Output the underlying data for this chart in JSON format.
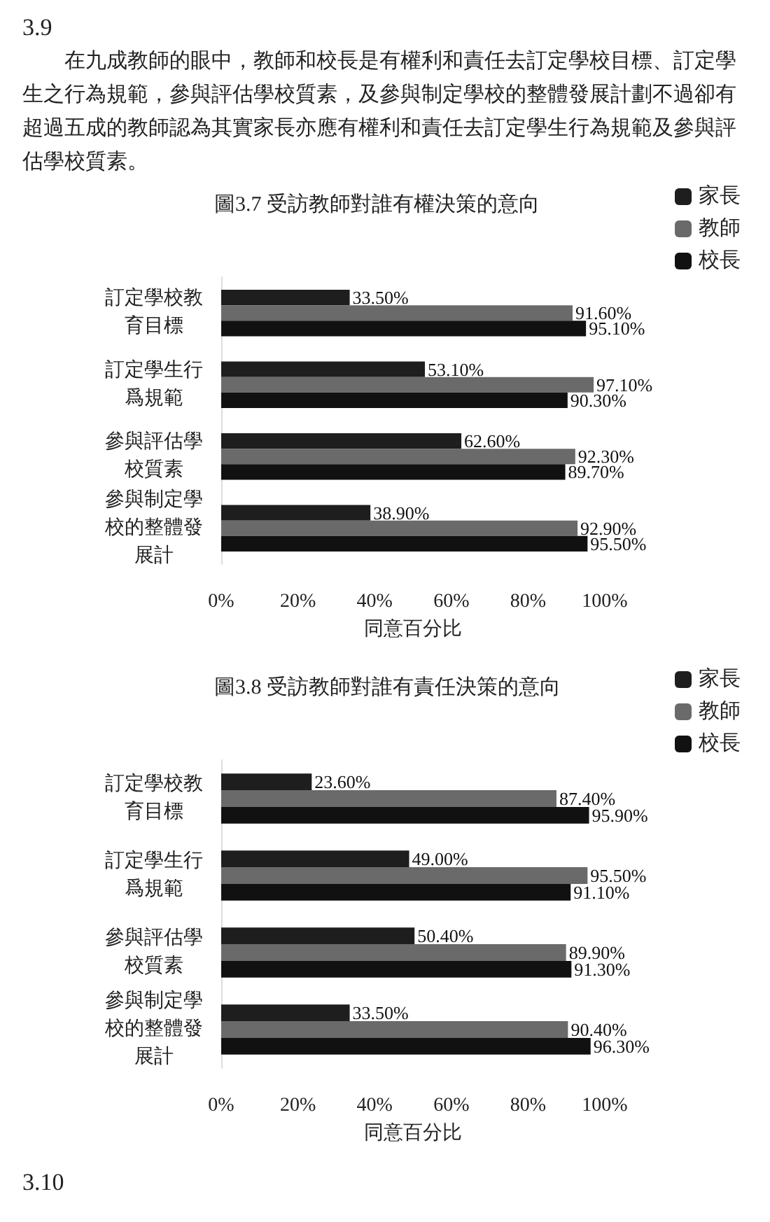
{
  "chart_data": [
    {
      "type": "bar",
      "orientation": "horizontal",
      "title": "圖3.7 受訪教師對誰有權決策的意向",
      "xlabel": "同意百分比",
      "annotations": [
        "3.9",
        "在九成教師的眼中，教師和校長是有權利和責任去訂定學校目標、訂定學生之行為規範，參與評估學校質素，及參與制定學校的整體發展計劃不過卻有超過五成的教師認為其實家長亦應有權利和責任去訂定學生行為規範及參與評估學校質素。"
      ],
      "categories": [
        "訂定學校教育目標",
        "訂定學生行爲規範",
        "參與評估學校質素",
        "參與制定學校的整體發展計"
      ],
      "series": [
        {
          "name": "家長",
          "color": "#1e1e1e",
          "values": [
            33.5,
            53.1,
            62.6,
            38.9
          ],
          "value_labels": [
            "33.50%",
            "53.10%",
            "62.60%",
            "38.90%"
          ]
        },
        {
          "name": "教師",
          "color": "#6a6a6a",
          "values": [
            91.6,
            97.1,
            92.3,
            92.9
          ],
          "value_labels": [
            "91.60%",
            "97.10%",
            "92.30%",
            "92.90%"
          ]
        },
        {
          "name": "校長",
          "color": "#111111",
          "values": [
            95.1,
            90.3,
            89.7,
            95.5
          ],
          "value_labels": [
            "95.10%",
            "90.30%",
            "89.70%",
            "95.50%"
          ]
        }
      ],
      "xlim": [
        0,
        100
      ],
      "xticks": [
        {
          "value": 0,
          "label": "0%"
        },
        {
          "value": 20,
          "label": "20%"
        },
        {
          "value": 40,
          "label": "40%"
        },
        {
          "value": 60,
          "label": "60%"
        },
        {
          "value": 80,
          "label": "80%"
        },
        {
          "value": 100,
          "label": "100%"
        }
      ],
      "grid": false,
      "legend": "top right"
    },
    {
      "type": "bar",
      "orientation": "horizontal",
      "title": "圖3.8 受訪教師對誰有責任決策的意向",
      "xlabel": "同意百分比",
      "annotations": [
        "3.10"
      ],
      "categories": [
        "訂定學校教育目標",
        "訂定學生行爲規範",
        "參與評估學校質素",
        "參與制定學校的整體發展計"
      ],
      "series": [
        {
          "name": "家長",
          "color": "#1e1e1e",
          "values": [
            23.6,
            49.0,
            50.4,
            33.5
          ],
          "value_labels": [
            "23.60%",
            "49.00%",
            "50.40%",
            "33.50%"
          ]
        },
        {
          "name": "教師",
          "color": "#6a6a6a",
          "values": [
            87.4,
            95.5,
            89.9,
            90.4
          ],
          "value_labels": [
            "87.40%",
            "95.50%",
            "89.90%",
            "90.40%"
          ]
        },
        {
          "name": "校長",
          "color": "#111111",
          "values": [
            95.9,
            91.1,
            91.3,
            96.3
          ],
          "value_labels": [
            "95.90%",
            "91.10%",
            "91.30%",
            "96.30%"
          ]
        }
      ],
      "xlim": [
        0,
        100
      ],
      "xticks": [
        {
          "value": 0,
          "label": "0%"
        },
        {
          "value": 20,
          "label": "20%"
        },
        {
          "value": 40,
          "label": "40%"
        },
        {
          "value": 60,
          "label": "60%"
        },
        {
          "value": 80,
          "label": "80%"
        },
        {
          "value": 100,
          "label": "100%"
        }
      ],
      "grid": false,
      "legend": "top right"
    }
  ]
}
